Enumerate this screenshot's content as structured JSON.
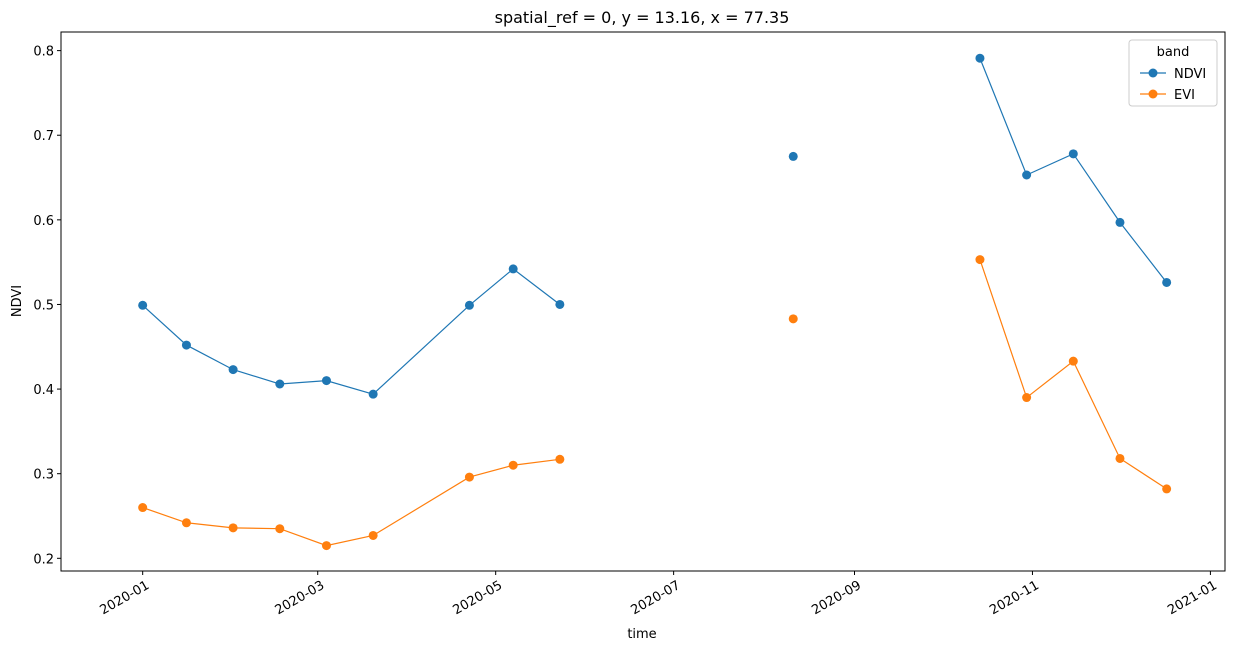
{
  "chart_data": {
    "type": "line",
    "title": "spatial_ref = 0, y = 13.16, x = 77.35",
    "xlabel": "time",
    "ylabel": "NDVI",
    "ylim": [
      0.185,
      0.822
    ],
    "xlim": [
      "2019-12-04",
      "2021-01-06"
    ],
    "x_ticks": [
      "2020-01",
      "2020-03",
      "2020-05",
      "2020-07",
      "2020-09",
      "2020-11",
      "2021-01"
    ],
    "x_tick_dates": [
      "2020-01-01",
      "2020-03-01",
      "2020-05-01",
      "2020-07-01",
      "2020-09-01",
      "2020-11-01",
      "2021-01-01"
    ],
    "y_ticks": [
      "0.2",
      "0.3",
      "0.4",
      "0.5",
      "0.6",
      "0.7",
      "0.8"
    ],
    "y_tick_values": [
      0.2,
      0.3,
      0.4,
      0.5,
      0.6,
      0.7,
      0.8
    ],
    "grid": false,
    "legend": {
      "title": "band",
      "position": "top-right"
    },
    "x": [
      "2020-01-01",
      "2020-01-16",
      "2020-02-01",
      "2020-02-17",
      "2020-03-04",
      "2020-03-20",
      "2020-04-22",
      "2020-05-07",
      "2020-05-23",
      "2020-08-11",
      "2020-10-14",
      "2020-10-30",
      "2020-11-15",
      "2020-12-01",
      "2020-12-17"
    ],
    "series": [
      {
        "name": "NDVI",
        "color": "#1f77b4",
        "values": [
          0.499,
          0.452,
          0.423,
          0.406,
          0.41,
          0.394,
          0.499,
          0.542,
          0.5,
          0.675,
          0.791,
          0.653,
          0.678,
          0.597,
          0.526
        ]
      },
      {
        "name": "EVI",
        "color": "#ff7f0e",
        "values": [
          0.26,
          0.242,
          0.236,
          0.235,
          0.215,
          0.227,
          0.296,
          0.31,
          0.317,
          0.483,
          0.553,
          0.39,
          0.433,
          0.318,
          0.282
        ]
      }
    ],
    "gaps_after_index": [
      8,
      9
    ]
  }
}
